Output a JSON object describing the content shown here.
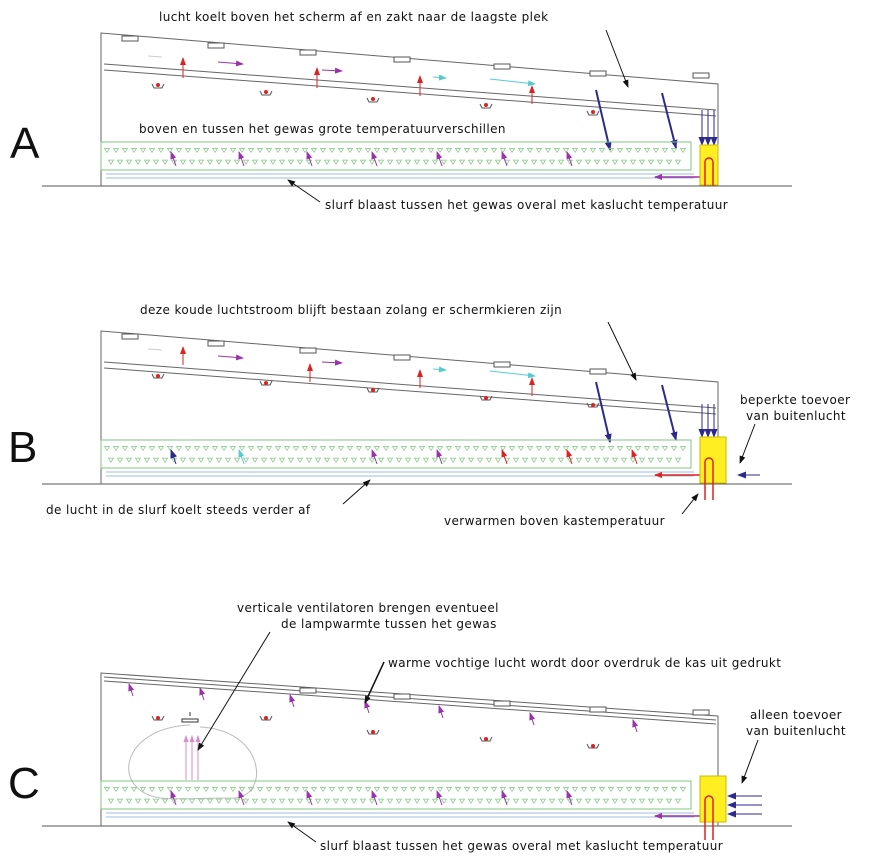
{
  "panels": [
    {
      "id": "A",
      "letter": "A",
      "top_note": "lucht koelt boven het scherm af en zakt naar de laagste plek",
      "crop_note": "boven en tussen het gewas grote temperatuurverschillen",
      "bottom_note": "slurf blaast tussen het gewas overal met kaslucht temperatuur"
    },
    {
      "id": "B",
      "letter": "B",
      "top_note": "deze koude luchtstroom blijft bestaan zolang er schermkieren zijn",
      "side_note_1": "beperkte toevoer",
      "side_note_2": "van buitenlucht",
      "left_note": "de lucht in de slurf koelt steeds verder af",
      "bottom_note": "verwarmen boven kastemperatuur"
    },
    {
      "id": "C",
      "letter": "C",
      "fan_note_1": "verticale ventilatoren brengen eventueel",
      "fan_note_2": "de lampwarmte tussen het gewas",
      "roof_note": "warme vochtige lucht wordt door overdruk de kas uit gedrukt",
      "side_note_1": "alleen toevoer",
      "side_note_2": "van buitenlucht",
      "bottom_note": "slurf blaast tussen het gewas overal met kaslucht temperatuur"
    }
  ],
  "colors": {
    "line": "#555555",
    "crop": "#7cc77c",
    "heater": "#ffee22",
    "pipe": "#dd2222",
    "cold_air": "#2e2a8c",
    "mixed_air": "#9933aa",
    "cool_air": "#55cccc",
    "warm_air": "#dd2222",
    "tube": "#9fbcd8"
  }
}
